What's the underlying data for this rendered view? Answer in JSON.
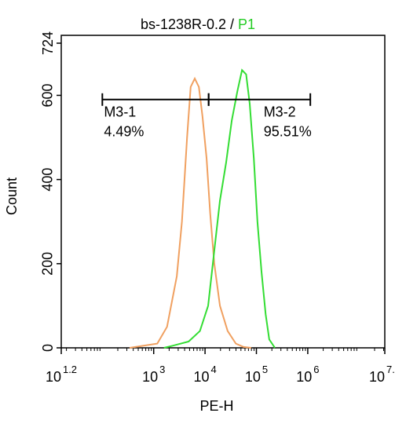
{
  "chart_data": {
    "type": "line",
    "title": "bs-1238R-0.2 /",
    "title_highlight": "P1",
    "title_highlight_color": "#22cc22",
    "x_label": "PE-H",
    "y_label": "Count",
    "log_scale": true,
    "xlim": [
      1.2,
      7.5
    ],
    "xticks": [
      {
        "value": 1.2,
        "label": "10"
      },
      {
        "value": 3,
        "label": "10"
      },
      {
        "value": 4,
        "label": "10"
      },
      {
        "value": 5,
        "label": "10"
      },
      {
        "value": 6,
        "label": "10"
      },
      {
        "value": 7.5,
        "label": "10"
      }
    ],
    "ylim": [
      0,
      724
    ],
    "yticks": [
      0,
      200,
      400,
      600,
      724
    ],
    "series": [
      {
        "color": "#f0a060",
        "x": [
          2.53,
          3.07,
          3.26,
          3.45,
          3.55,
          3.65,
          3.72,
          3.8,
          3.88,
          3.95,
          4.03,
          4.1,
          4.18,
          4.29,
          4.44,
          4.6,
          4.75,
          4.9
        ],
        "values": [
          0,
          10,
          50,
          170,
          300,
          500,
          620,
          640,
          620,
          550,
          450,
          320,
          200,
          100,
          40,
          10,
          2,
          0
        ]
      },
      {
        "color": "#33dd33",
        "x": [
          3.2,
          3.37,
          3.68,
          3.9,
          4.06,
          4.17,
          4.29,
          4.41,
          4.52,
          4.63,
          4.72,
          4.8,
          4.87,
          4.95,
          5.02,
          5.1,
          5.18,
          5.25,
          5.36
        ],
        "values": [
          0,
          5,
          15,
          40,
          100,
          220,
          350,
          440,
          540,
          610,
          660,
          650,
          580,
          450,
          300,
          180,
          80,
          20,
          0
        ]
      }
    ],
    "gate_y": 590,
    "gates": [
      {
        "label": "M3-1",
        "percent": "4.49%",
        "range": [
          2.0,
          4.07
        ]
      },
      {
        "label": "M3-2",
        "percent": "95.51%",
        "range": [
          4.07,
          6.05
        ]
      }
    ]
  }
}
